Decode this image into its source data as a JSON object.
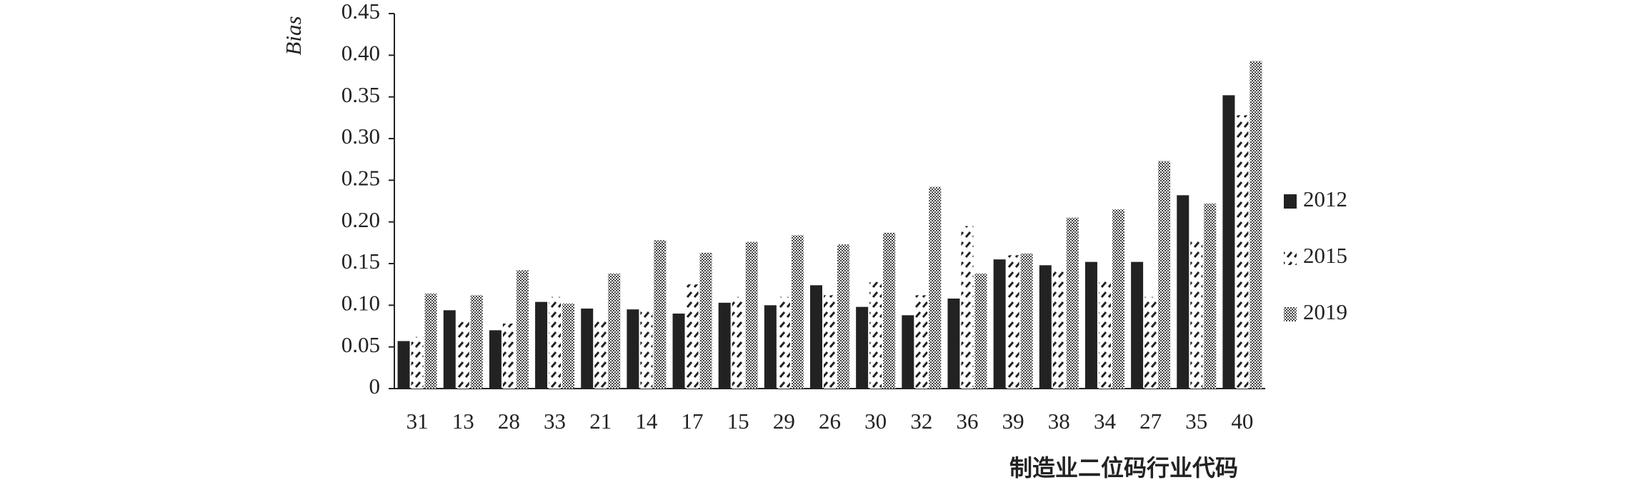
{
  "chart_data": {
    "type": "bar",
    "y_label": "Bias",
    "x_label": "制造业二位码行业代码",
    "categories": [
      "31",
      "13",
      "28",
      "33",
      "21",
      "14",
      "17",
      "15",
      "29",
      "26",
      "30",
      "32",
      "36",
      "39",
      "38",
      "34",
      "27",
      "35",
      "40"
    ],
    "series": [
      {
        "name": "2012",
        "color": "#222222",
        "pattern": "solid",
        "values": [
          0.057,
          0.094,
          0.07,
          0.104,
          0.096,
          0.095,
          0.09,
          0.103,
          0.1,
          0.124,
          0.098,
          0.088,
          0.108,
          0.155,
          0.148,
          0.152,
          0.152,
          0.232,
          0.352
        ]
      },
      {
        "name": "2015",
        "color": "#222222",
        "pattern": "hatch",
        "values": [
          0.062,
          0.08,
          0.078,
          0.11,
          0.085,
          0.095,
          0.125,
          0.11,
          0.11,
          0.112,
          0.128,
          0.112,
          0.195,
          0.16,
          0.142,
          0.13,
          0.11,
          0.178,
          0.328
        ]
      },
      {
        "name": "2019",
        "color": "#444444",
        "pattern": "dots",
        "values": [
          0.114,
          0.112,
          0.142,
          0.102,
          0.138,
          0.178,
          0.163,
          0.176,
          0.184,
          0.173,
          0.187,
          0.242,
          0.138,
          0.162,
          0.205,
          0.215,
          0.273,
          0.222,
          0.393
        ]
      }
    ],
    "ylim": [
      0,
      0.45
    ],
    "yticks": [
      0,
      0.05,
      {
        "value": 0.1,
        "label": "0.10"
      },
      0.15,
      {
        "value": 0.2,
        "label": "0.20"
      },
      0.25,
      {
        "value": 0.3,
        "label": "0.30"
      },
      0.35,
      {
        "value": 0.4,
        "label": "0.40"
      },
      0.45
    ],
    "legend": "right"
  }
}
